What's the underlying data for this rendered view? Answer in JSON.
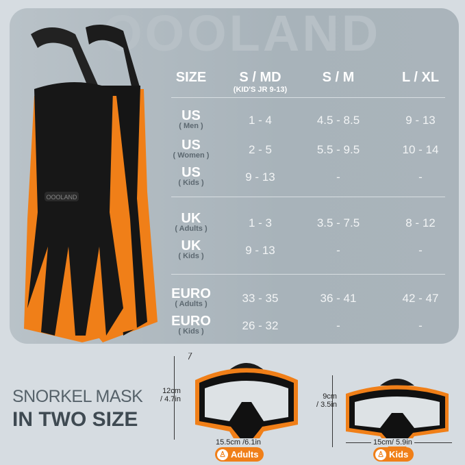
{
  "brand": "OOOLAND",
  "fin_logo": "OOOLAND",
  "table": {
    "headers": [
      {
        "label": "SIZE",
        "sub": ""
      },
      {
        "label": "S / MD",
        "sub": "(KID'S JR 9-13)"
      },
      {
        "label": "S / M",
        "sub": ""
      },
      {
        "label": "L / XL",
        "sub": ""
      }
    ],
    "rows": [
      {
        "region": "US",
        "group": "( Men )",
        "values": [
          "1 - 4",
          "4.5 - 8.5",
          "9 - 13"
        ]
      },
      {
        "region": "US",
        "group": "( Women )",
        "values": [
          "2 - 5",
          "5.5 - 9.5",
          "10 - 14"
        ]
      },
      {
        "region": "US",
        "group": "( Kids )",
        "values": [
          "9 - 13",
          "-",
          "-"
        ]
      },
      {
        "region": "UK",
        "group": "( Adults )",
        "values": [
          "1 - 3",
          "3.5 - 7.5",
          "8 - 12"
        ]
      },
      {
        "region": "UK",
        "group": "( Kids )",
        "values": [
          "9 - 13",
          "-",
          "-"
        ]
      },
      {
        "region": "EURO",
        "group": "( Adults )",
        "values": [
          "33 - 35",
          "36 - 41",
          "42 - 47"
        ]
      },
      {
        "region": "EURO",
        "group": "( Kids )",
        "values": [
          "26 - 32",
          "-",
          "-"
        ]
      }
    ]
  },
  "mask": {
    "title_line1": "SNORKEL MASK",
    "title_line2": "IN TWO SIZE",
    "adult": {
      "height": "12cm",
      "height_in": "/ 4.7in",
      "width": "15.5cm /6.1in",
      "badge": "Adults"
    },
    "kid": {
      "height": "9cm",
      "height_in": "/ 3.5in",
      "width": "15cm/ 5.9in",
      "badge": "Kids"
    }
  },
  "colors": {
    "accent": "#f07f18",
    "panel": "#a8b3ba",
    "background": "#d6dce1"
  }
}
